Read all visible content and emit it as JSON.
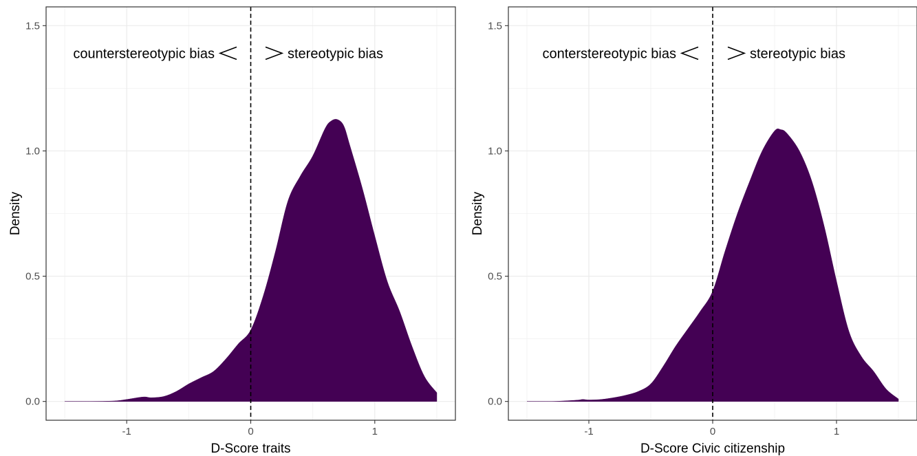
{
  "chart_data": [
    {
      "type": "area",
      "xlabel": "D-Score traits",
      "ylabel": "Density",
      "xlim": [
        -1.65,
        1.65
      ],
      "ylim": [
        -0.075,
        1.575
      ],
      "x_ticks": [
        -1,
        0,
        1
      ],
      "x_tick_labels": [
        "-1",
        "0",
        "1"
      ],
      "y_ticks": [
        0.0,
        0.5,
        1.0,
        1.5
      ],
      "y_tick_labels": [
        "0.0",
        "0.5",
        "1.0",
        "1.5"
      ],
      "grid": true,
      "fill_color": "#440154",
      "vline_x": 0,
      "annotation_left": "counterstereotypic bias",
      "annotation_right": "stereotypic bias",
      "density": {
        "x": [
          -1.5,
          -1.3,
          -1.1,
          -1.0,
          -0.9,
          -0.85,
          -0.8,
          -0.7,
          -0.6,
          -0.5,
          -0.4,
          -0.3,
          -0.2,
          -0.1,
          0.0,
          0.1,
          0.2,
          0.3,
          0.4,
          0.5,
          0.6,
          0.65,
          0.7,
          0.75,
          0.8,
          0.9,
          1.0,
          1.1,
          1.2,
          1.3,
          1.4,
          1.5
        ],
        "y": [
          0.0,
          0.0,
          0.002,
          0.008,
          0.016,
          0.018,
          0.015,
          0.02,
          0.04,
          0.07,
          0.095,
          0.12,
          0.17,
          0.23,
          0.285,
          0.42,
          0.6,
          0.8,
          0.9,
          0.98,
          1.09,
          1.12,
          1.125,
          1.1,
          1.02,
          0.85,
          0.66,
          0.48,
          0.36,
          0.22,
          0.1,
          0.035
        ]
      }
    },
    {
      "type": "area",
      "xlabel": "D-Score Civic citizenship",
      "ylabel": "Density",
      "xlim": [
        -1.65,
        1.65
      ],
      "ylim": [
        -0.075,
        1.575
      ],
      "x_ticks": [
        -1,
        0,
        1
      ],
      "x_tick_labels": [
        "-1",
        "0",
        "1"
      ],
      "y_ticks": [
        0.0,
        0.5,
        1.0,
        1.5
      ],
      "y_tick_labels": [
        "0.0",
        "0.5",
        "1.0",
        "1.5"
      ],
      "grid": true,
      "fill_color": "#440154",
      "vline_x": 0,
      "annotation_left": "conterstereotypic bias",
      "annotation_right": "stereotypic bias",
      "density": {
        "x": [
          -1.5,
          -1.3,
          -1.1,
          -1.05,
          -1.0,
          -0.9,
          -0.8,
          -0.7,
          -0.6,
          -0.5,
          -0.4,
          -0.3,
          -0.2,
          -0.1,
          0.0,
          0.1,
          0.2,
          0.3,
          0.4,
          0.5,
          0.55,
          0.6,
          0.7,
          0.8,
          0.9,
          1.0,
          1.1,
          1.2,
          1.3,
          1.4,
          1.5
        ],
        "y": [
          0.0,
          0.0,
          0.005,
          0.008,
          0.006,
          0.008,
          0.015,
          0.025,
          0.04,
          0.07,
          0.14,
          0.22,
          0.29,
          0.36,
          0.44,
          0.6,
          0.75,
          0.88,
          1.0,
          1.08,
          1.085,
          1.07,
          1.0,
          0.88,
          0.7,
          0.48,
          0.28,
          0.18,
          0.12,
          0.05,
          0.01
        ]
      }
    }
  ]
}
